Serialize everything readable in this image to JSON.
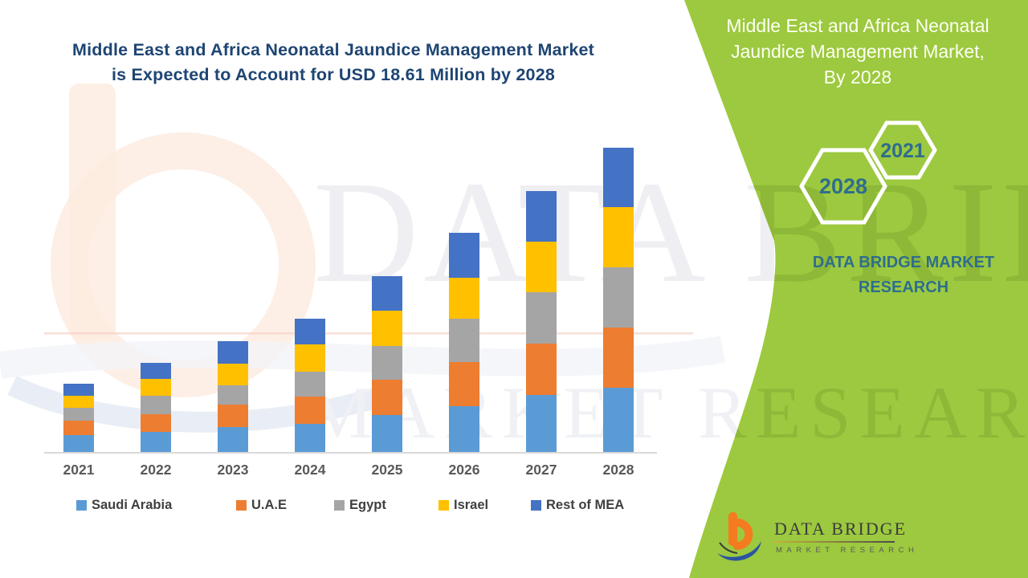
{
  "page": {
    "left_title_line1": "Middle East and Africa Neonatal Jaundice Management Market",
    "left_title_line2": "is Expected to Account for USD 18.61 Million by 2028"
  },
  "side_panel": {
    "panel_color": "#9CC93F",
    "accent_text_color": "#2E6E8E",
    "title_line1": "Middle East and Africa Neonatal",
    "title_line2": "Jaundice Management Market,",
    "title_line3": "By 2028",
    "hex_small_label": "2021",
    "hex_large_label": "2028",
    "brand_line1": "DATA BRIDGE MARKET",
    "brand_line2": "RESEARCH"
  },
  "logo": {
    "name_text": "DATA BRIDGE",
    "sub_text": "MARKET RESEARCH"
  },
  "watermark": {
    "big_text": "DATA BRIDGE",
    "small_text": "MARKET RESEARCH"
  },
  "chart_data": {
    "type": "bar",
    "stacked": true,
    "title": "Middle East and Africa Neonatal Jaundice Management Market is Expected to Account for USD 18.61 Million by 2028",
    "unit": "USD Million",
    "highlight_value": "USD 18.61 Million by 2028",
    "categories": [
      "2021",
      "2022",
      "2023",
      "2024",
      "2025",
      "2026",
      "2027",
      "2028"
    ],
    "series": [
      {
        "name": "Saudi Arabia",
        "color": "#5B9BD5",
        "values": [
          1.03,
          1.23,
          1.52,
          1.72,
          2.26,
          2.8,
          3.49,
          3.94
        ]
      },
      {
        "name": "U.A.E",
        "color": "#ED7D31",
        "values": [
          0.88,
          1.08,
          1.38,
          1.67,
          2.16,
          2.7,
          3.14,
          3.68
        ]
      },
      {
        "name": "Egypt",
        "color": "#A5A5A5",
        "values": [
          0.79,
          1.13,
          1.18,
          1.52,
          2.06,
          2.65,
          3.14,
          3.68
        ]
      },
      {
        "name": "Israel",
        "color": "#FFC000",
        "values": [
          0.74,
          1.03,
          1.33,
          1.67,
          2.16,
          2.5,
          3.09,
          3.68
        ]
      },
      {
        "name": "Rest of MEA",
        "color": "#4472C4",
        "values": [
          0.74,
          0.98,
          1.38,
          1.57,
          2.11,
          2.75,
          3.09,
          3.63
        ]
      }
    ],
    "totals": [
      4.18,
      5.45,
      6.79,
      8.15,
      10.75,
      13.4,
      15.95,
      18.61
    ],
    "ylim": [
      0,
      19
    ],
    "grid": false,
    "y_axis_visible": false,
    "legend_position": "bottom"
  }
}
